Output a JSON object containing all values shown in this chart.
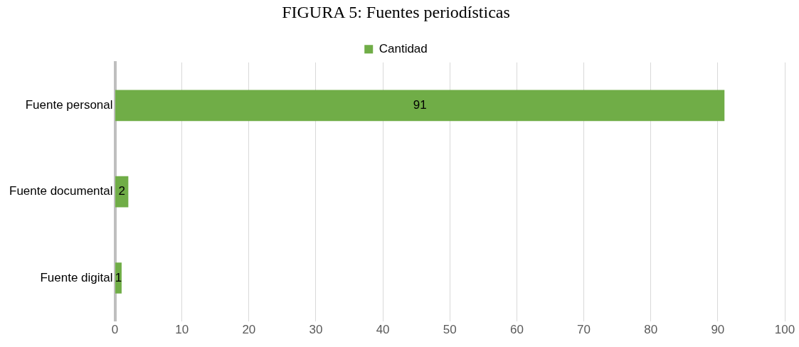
{
  "chart_data": {
    "type": "bar",
    "orientation": "horizontal",
    "title": "FIGURA 5: Fuentes periodísticas",
    "categories": [
      "Fuente personal",
      "Fuente documental",
      "Fuente digital"
    ],
    "series": [
      {
        "name": "Cantidad",
        "color": "#70ad47",
        "values": [
          91,
          2,
          1
        ]
      }
    ],
    "xlim": [
      0,
      100
    ],
    "xticks": [
      0,
      10,
      20,
      30,
      40,
      50,
      60,
      70,
      80,
      90,
      100
    ],
    "grid": "x",
    "legend": "top",
    "data_labels": true
  }
}
